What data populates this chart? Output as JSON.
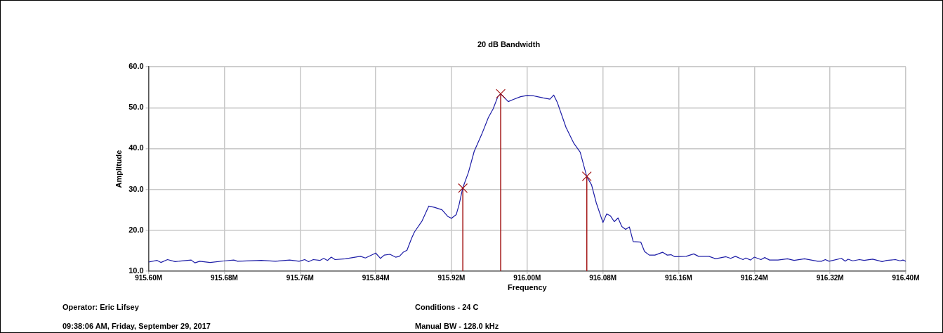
{
  "chart_data": {
    "type": "line",
    "title": "20 dB Bandwidth",
    "xlabel": "Frequency",
    "ylabel": "Amplitude",
    "xlim": [
      915.6,
      916.4
    ],
    "xticks": [
      {
        "value": 915.6,
        "label": "915.60M"
      },
      {
        "value": 915.68,
        "label": "915.68M"
      },
      {
        "value": 915.76,
        "label": "915.76M"
      },
      {
        "value": 915.84,
        "label": "915.84M"
      },
      {
        "value": 915.92,
        "label": "915.92M"
      },
      {
        "value": 916.0,
        "label": "916.00M"
      },
      {
        "value": 916.08,
        "label": "916.08M"
      },
      {
        "value": 916.16,
        "label": "916.16M"
      },
      {
        "value": 916.24,
        "label": "916.24M"
      },
      {
        "value": 916.32,
        "label": "916.32M"
      },
      {
        "value": 916.4,
        "label": "916.40M"
      }
    ],
    "ylim": [
      10,
      60
    ],
    "yticks": [
      {
        "value": 10,
        "label": "10.0"
      },
      {
        "value": 20,
        "label": "20.0"
      },
      {
        "value": 30,
        "label": "30.0"
      },
      {
        "value": 40,
        "label": "40.0"
      },
      {
        "value": 50,
        "label": "50.0"
      },
      {
        "value": 60,
        "label": "60.0"
      }
    ],
    "grid": true,
    "legend": false,
    "series": [
      {
        "color": "#1c1ca6",
        "x": [
          915.6,
          915.609,
          915.613,
          915.62,
          915.628,
          915.645,
          915.649,
          915.654,
          915.665,
          915.681,
          915.69,
          915.694,
          915.719,
          915.734,
          915.749,
          915.759,
          915.765,
          915.769,
          915.774,
          915.781,
          915.785,
          915.789,
          915.793,
          915.797,
          915.808,
          915.818,
          915.824,
          915.829,
          915.84,
          915.845,
          915.849,
          915.855,
          915.861,
          915.865,
          915.869,
          915.873,
          915.878,
          915.881,
          915.889,
          915.896,
          915.902,
          915.91,
          915.916,
          915.92,
          915.925,
          915.928,
          915.932,
          915.938,
          915.944,
          915.952,
          915.959,
          915.964,
          915.969,
          915.972,
          915.98,
          915.985,
          915.993,
          916.0,
          916.007,
          916.017,
          916.024,
          916.028,
          916.032,
          916.041,
          916.049,
          916.056,
          916.063,
          916.068,
          916.073,
          916.08,
          916.084,
          916.088,
          916.092,
          916.096,
          916.1,
          916.104,
          916.108,
          916.112,
          916.12,
          916.124,
          916.129,
          916.135,
          916.143,
          916.148,
          916.152,
          916.156,
          916.168,
          916.176,
          916.181,
          916.192,
          916.199,
          916.21,
          916.215,
          916.22,
          916.228,
          916.231,
          916.236,
          916.24,
          916.247,
          916.251,
          916.256,
          916.265,
          916.275,
          916.282,
          916.293,
          916.307,
          916.311,
          916.315,
          916.319,
          916.332,
          916.336,
          916.339,
          916.344,
          916.351,
          916.356,
          916.365,
          916.375,
          916.38,
          916.389,
          916.394,
          916.397,
          916.4
        ],
        "values": [
          12.2,
          12.6,
          12.1,
          12.8,
          12.3,
          12.7,
          12.0,
          12.4,
          12.1,
          12.5,
          12.7,
          12.4,
          12.6,
          12.4,
          12.7,
          12.4,
          12.8,
          12.3,
          12.8,
          12.6,
          13.1,
          12.6,
          13.4,
          12.8,
          13.0,
          13.4,
          13.6,
          13.2,
          14.4,
          13.1,
          13.9,
          14.1,
          13.4,
          13.6,
          14.6,
          15.1,
          18.1,
          19.6,
          22.3,
          25.9,
          25.6,
          25.0,
          23.4,
          22.9,
          23.8,
          26.2,
          30.4,
          34.2,
          39.3,
          43.5,
          47.6,
          49.7,
          52.7,
          53.4,
          51.5,
          52.0,
          52.7,
          53.0,
          52.9,
          52.4,
          52.1,
          53.1,
          51.2,
          45.2,
          41.4,
          39.1,
          33.1,
          31.1,
          26.7,
          21.9,
          24.0,
          23.5,
          22.1,
          23.0,
          20.9,
          20.2,
          20.8,
          17.2,
          17.1,
          14.8,
          13.9,
          13.9,
          14.6,
          13.9,
          14.0,
          13.5,
          13.6,
          14.2,
          13.6,
          13.6,
          13.0,
          13.5,
          13.1,
          13.6,
          12.8,
          13.2,
          12.7,
          13.4,
          12.8,
          13.3,
          12.7,
          12.7,
          13.0,
          12.6,
          13.0,
          12.4,
          12.4,
          12.8,
          12.4,
          13.1,
          12.4,
          12.9,
          12.5,
          12.8,
          12.6,
          12.9,
          12.3,
          12.6,
          12.8,
          12.5,
          12.7,
          12.4
        ]
      },
      {
        "type": "lollipop",
        "color": "#a31515",
        "marker": "cross",
        "x": [
          915.932,
          915.972,
          916.063
        ],
        "values": [
          30.3,
          53.4,
          33.2
        ]
      }
    ],
    "annotations": [
      "Operator: Eric Lifsey",
      "09:38:06 AM, Friday, September 29, 2017",
      "Conditions - 24 C",
      "Manual BW - 128.0 kHz"
    ]
  }
}
